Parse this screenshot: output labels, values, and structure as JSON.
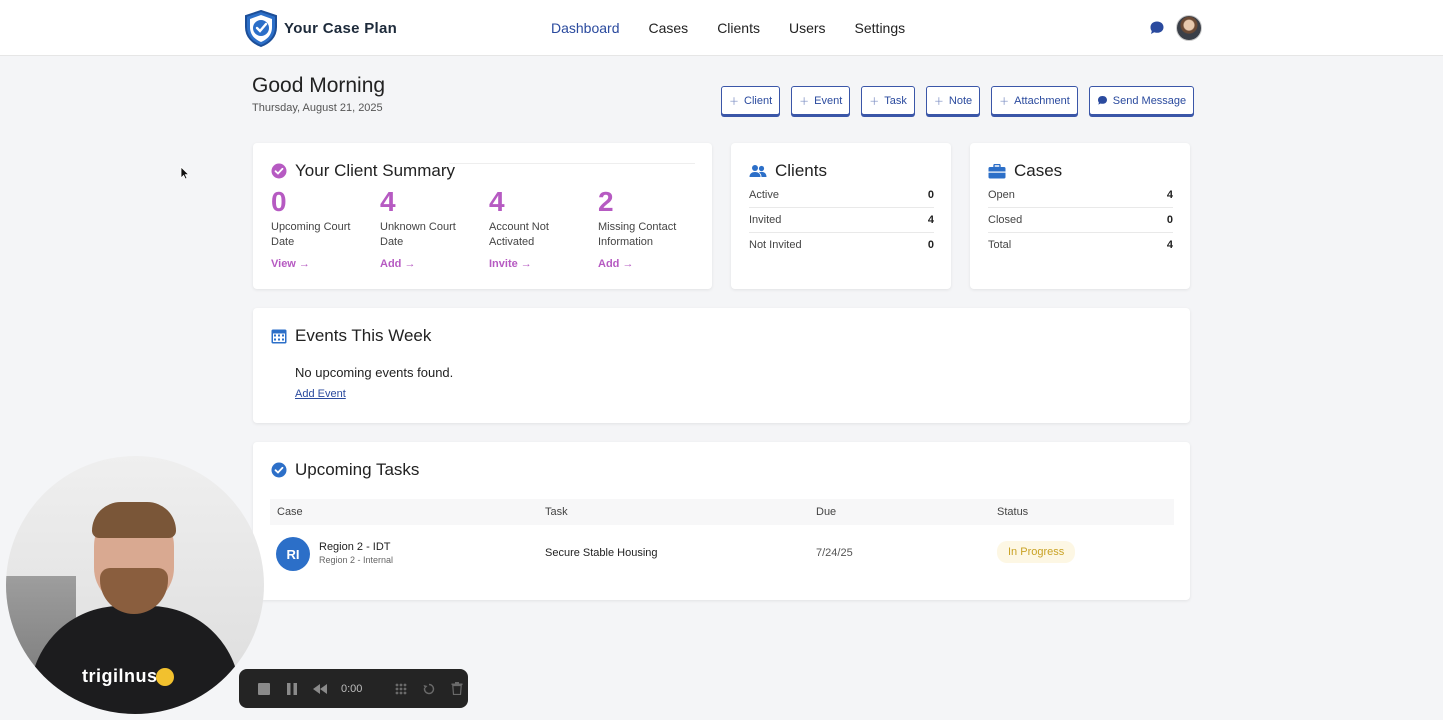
{
  "brand": {
    "name": "Your Case Plan",
    "accent": "#2a4a9e"
  },
  "nav": {
    "items": [
      {
        "label": "Dashboard",
        "active": true
      },
      {
        "label": "Cases"
      },
      {
        "label": "Clients"
      },
      {
        "label": "Users"
      },
      {
        "label": "Settings"
      }
    ]
  },
  "greeting": {
    "title": "Good Morning",
    "date": "Thursday, August 21, 2025"
  },
  "actions": [
    {
      "label": "Client",
      "icon": "plus-icon"
    },
    {
      "label": "Event",
      "icon": "plus-icon"
    },
    {
      "label": "Task",
      "icon": "plus-icon"
    },
    {
      "label": "Note",
      "icon": "plus-icon"
    },
    {
      "label": "Attachment",
      "icon": "plus-icon"
    },
    {
      "label": "Send Message",
      "icon": "chat-icon"
    }
  ],
  "summary": {
    "title": "Your Client Summary",
    "accent": "#b65ac2",
    "stats": [
      {
        "value": "0",
        "label": "Upcoming Court Date",
        "link": "View →"
      },
      {
        "value": "4",
        "label": "Unknown Court Date",
        "link": "Add →"
      },
      {
        "value": "4",
        "label": "Account Not Activated",
        "link": "Invite →"
      },
      {
        "value": "2",
        "label": "Missing Contact Information",
        "link": "Add →"
      }
    ]
  },
  "clients": {
    "title": "Clients",
    "rows": [
      {
        "label": "Active",
        "value": "0"
      },
      {
        "label": "Invited",
        "value": "4"
      },
      {
        "label": "Not Invited",
        "value": "0"
      }
    ]
  },
  "cases": {
    "title": "Cases",
    "rows": [
      {
        "label": "Open",
        "value": "4"
      },
      {
        "label": "Closed",
        "value": "0"
      },
      {
        "label": "Total",
        "value": "4"
      }
    ]
  },
  "events": {
    "title": "Events This Week",
    "empty_text": "No upcoming events found.",
    "add_label": "Add Event"
  },
  "tasks": {
    "title": "Upcoming Tasks",
    "columns": [
      "Case",
      "Task",
      "Due",
      "Status"
    ],
    "rows": [
      {
        "initials": "RI",
        "case": "Region 2 - IDT",
        "case_sub": "Region 2 - Internal",
        "task": "Secure Stable Housing",
        "due": "7/24/25",
        "status": "In Progress"
      }
    ]
  },
  "webcam": {
    "shirt_text": "trigilnus"
  },
  "recorder": {
    "time": "0:00"
  }
}
